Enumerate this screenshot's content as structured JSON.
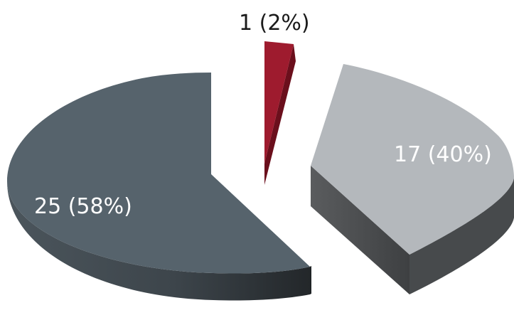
{
  "chart_data": {
    "type": "pie",
    "style": "3d-exploded",
    "slices": [
      {
        "value": 25,
        "label": "25 (58%)",
        "top_color": "#56636c",
        "side_color": "#2f353a",
        "label_color": "#ffffff"
      },
      {
        "value": 1,
        "label": "1 (2%)",
        "top_color": "#9e1b2e",
        "side_color": "#6b0f1c",
        "label_color": "#1a1a1a"
      },
      {
        "value": 17,
        "label": "17 (40%)",
        "top_color": "#b4b8bc",
        "side_color": "#4a4c4e",
        "label_color": "#ffffff"
      }
    ],
    "legend": "none"
  }
}
